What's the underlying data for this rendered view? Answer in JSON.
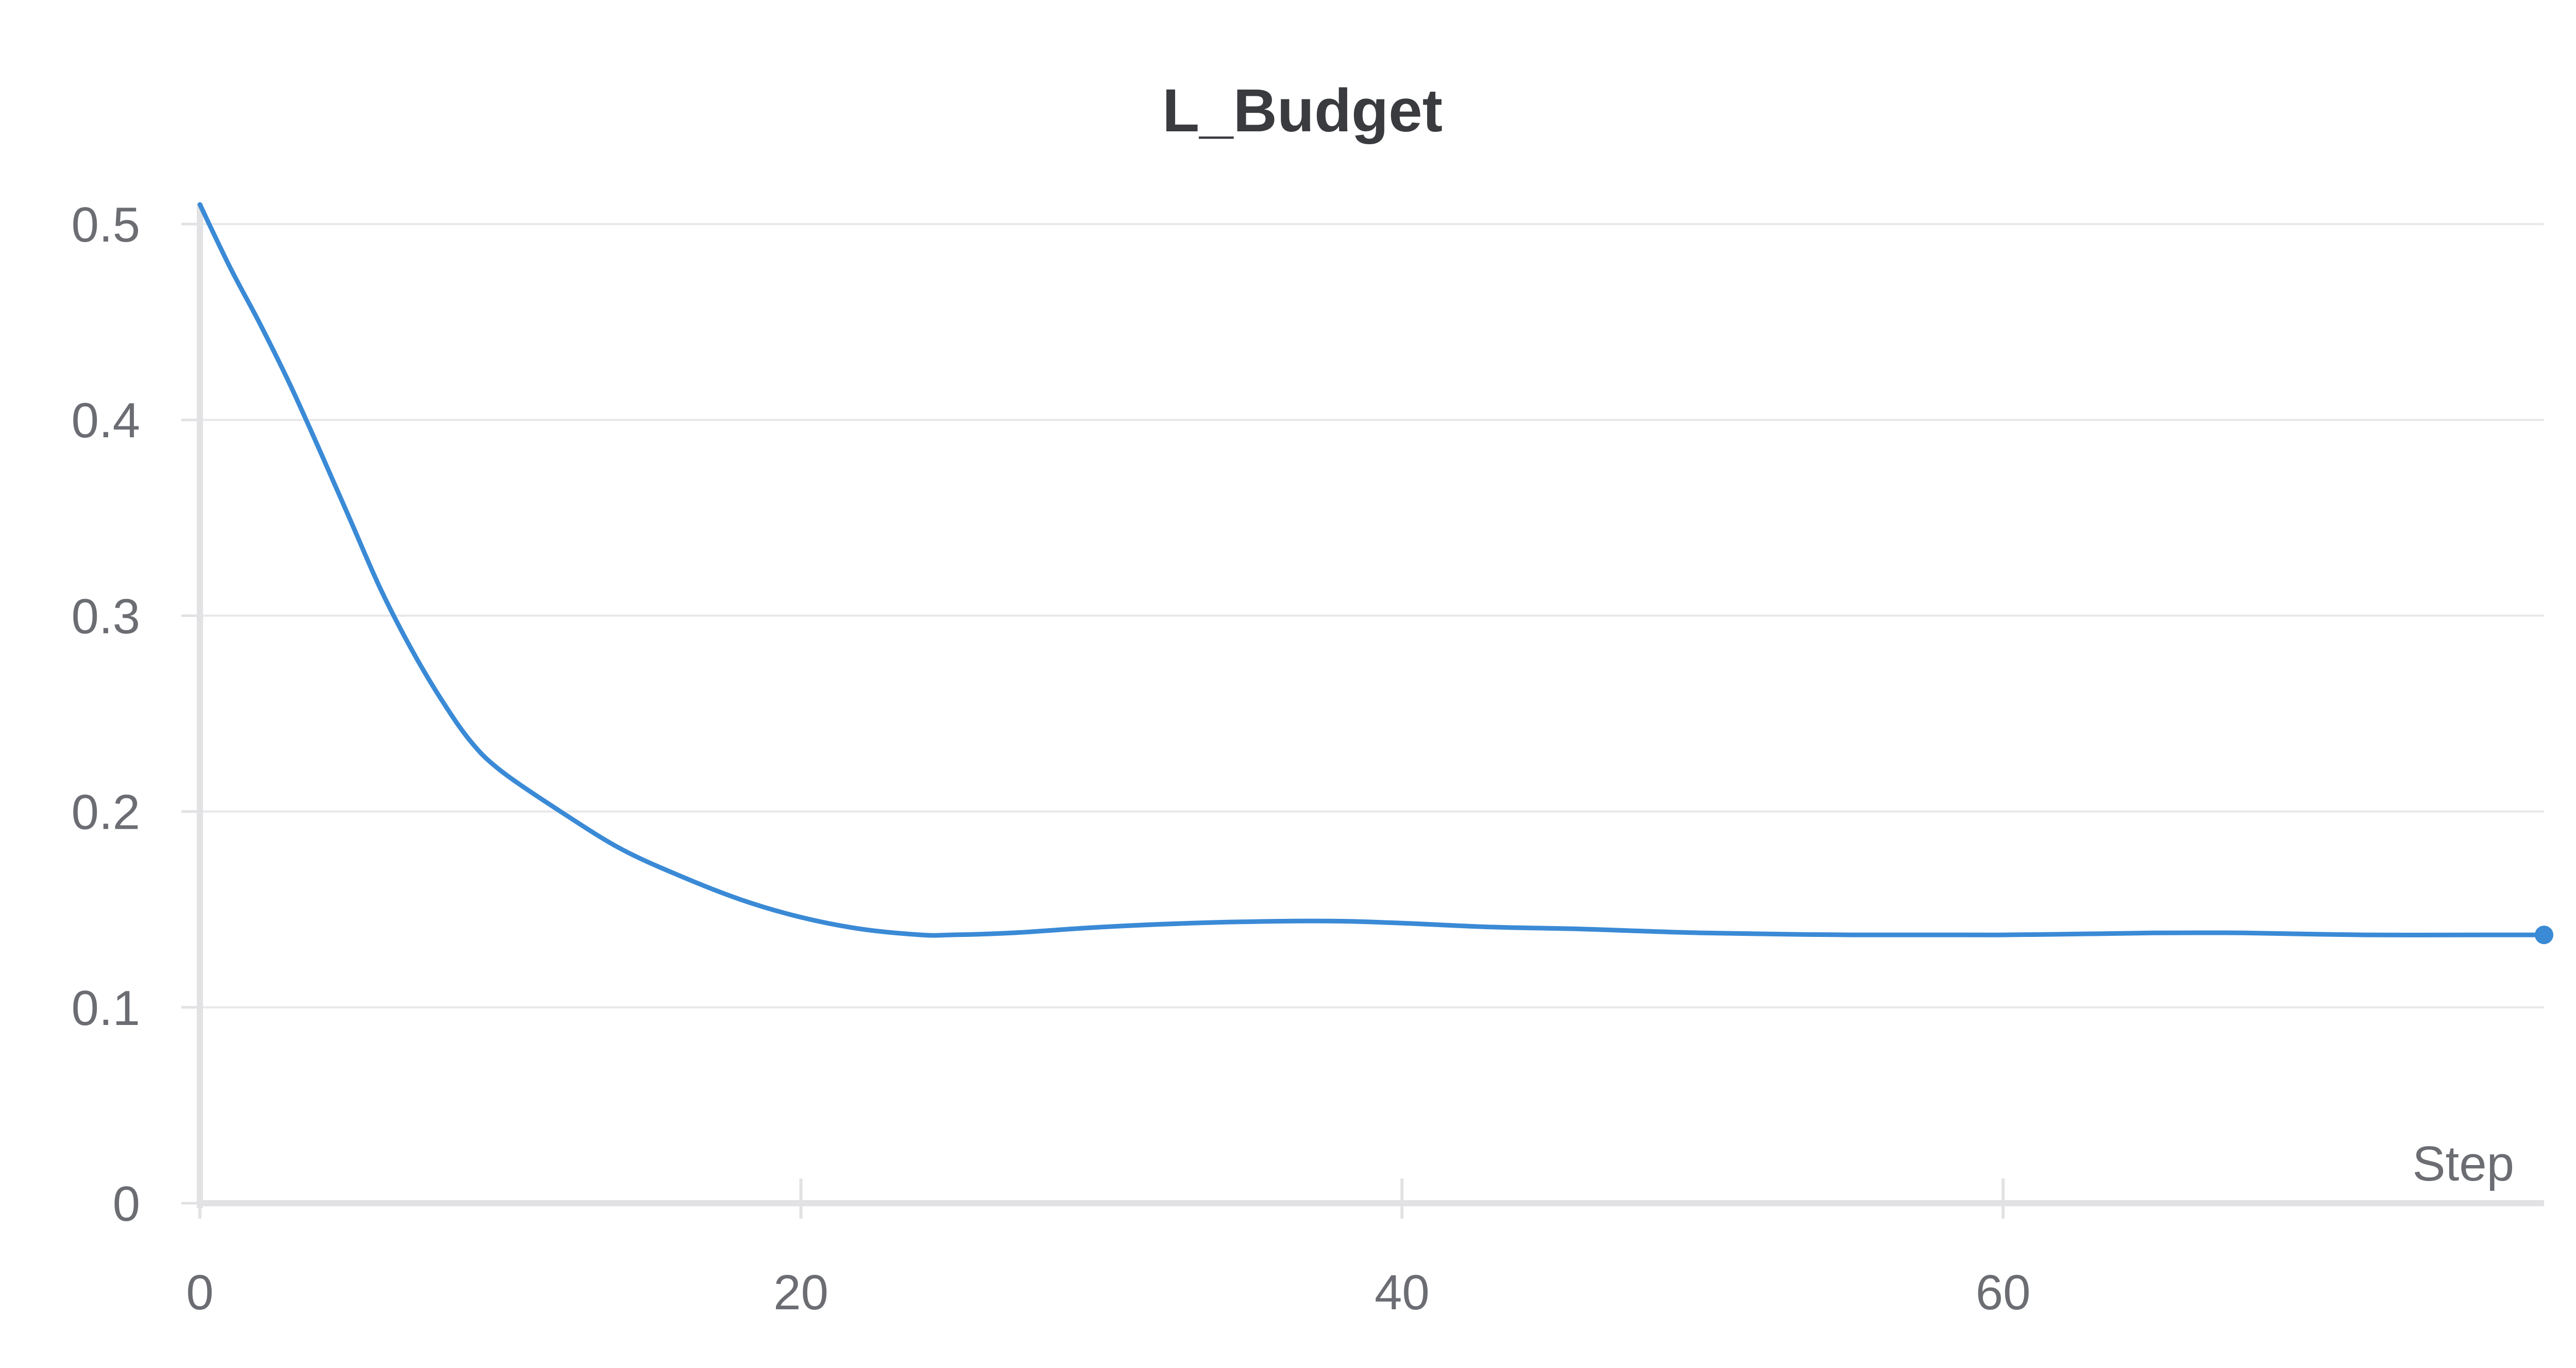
{
  "chart_data": {
    "type": "line",
    "title": "L_Budget",
    "xlabel": "Step",
    "ylabel": "",
    "xlim": [
      0,
      78
    ],
    "ylim": [
      0,
      0.5
    ],
    "x_ticks": [
      0,
      20,
      40,
      60
    ],
    "x_tick_labels": [
      "0",
      "20",
      "40",
      "60"
    ],
    "y_ticks": [
      0,
      0.1,
      0.2,
      0.3,
      0.4,
      0.5
    ],
    "y_tick_labels": [
      "0",
      "0.1",
      "0.2",
      "0.3",
      "0.4",
      "0.5"
    ],
    "grid": true,
    "legend": "none",
    "series": [
      {
        "color": "#3a8ad6",
        "end_marker": true,
        "x": [
          0,
          1,
          2,
          3,
          4,
          5,
          6,
          7,
          8,
          9,
          10,
          12,
          14,
          16,
          18,
          20,
          22,
          24,
          25,
          27,
          30,
          33,
          36,
          38,
          40,
          43,
          46,
          50,
          55,
          60,
          65,
          68,
          72,
          76,
          78
        ],
        "y": [
          0.51,
          0.478,
          0.449,
          0.418,
          0.384,
          0.349,
          0.314,
          0.284,
          0.258,
          0.236,
          0.221,
          0.2,
          0.181,
          0.167,
          0.155,
          0.146,
          0.14,
          0.137,
          0.137,
          0.138,
          0.141,
          0.143,
          0.144,
          0.144,
          0.143,
          0.141,
          0.14,
          0.138,
          0.137,
          0.137,
          0.138,
          0.138,
          0.137,
          0.137,
          0.137
        ]
      }
    ]
  }
}
